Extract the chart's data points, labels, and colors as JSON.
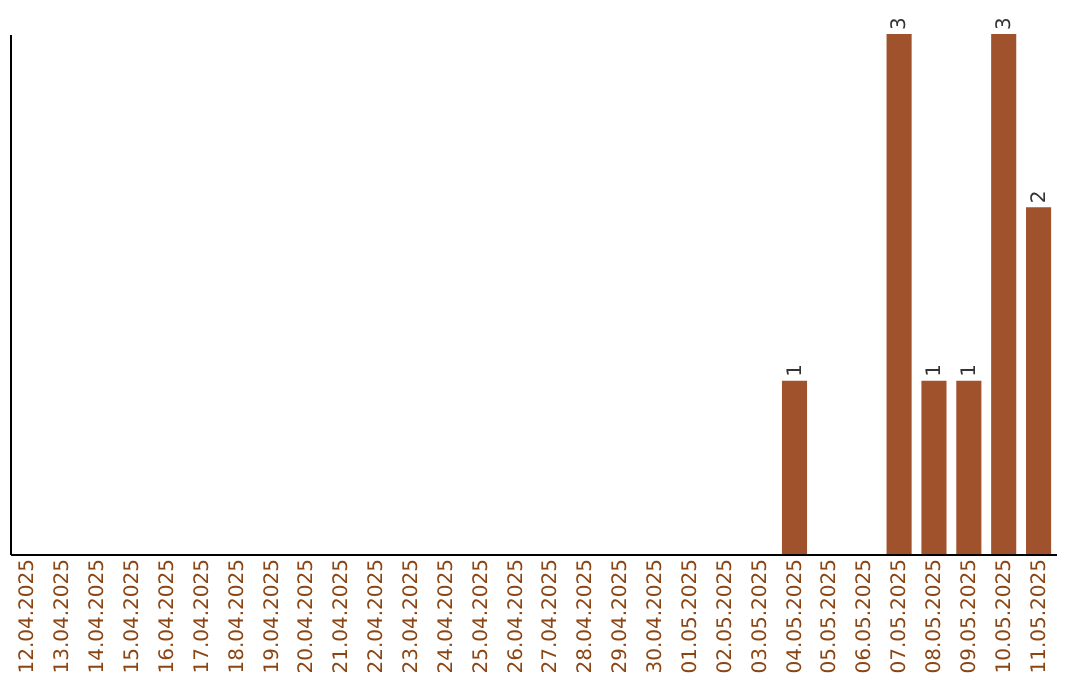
{
  "chart_data": {
    "type": "bar",
    "categories": [
      "12.04.2025",
      "13.04.2025",
      "14.04.2025",
      "15.04.2025",
      "16.04.2025",
      "17.04.2025",
      "18.04.2025",
      "19.04.2025",
      "20.04.2025",
      "21.04.2025",
      "22.04.2025",
      "23.04.2025",
      "24.04.2025",
      "25.04.2025",
      "26.04.2025",
      "27.04.2025",
      "28.04.2025",
      "29.04.2025",
      "30.04.2025",
      "01.05.2025",
      "02.05.2025",
      "03.05.2025",
      "04.05.2025",
      "05.05.2025",
      "06.05.2025",
      "07.05.2025",
      "08.05.2025",
      "09.05.2025",
      "10.05.2025",
      "11.05.2025"
    ],
    "values": [
      null,
      null,
      null,
      null,
      null,
      null,
      null,
      null,
      null,
      null,
      null,
      null,
      null,
      null,
      null,
      null,
      null,
      null,
      null,
      null,
      null,
      null,
      1,
      null,
      null,
      3,
      1,
      1,
      3,
      2
    ],
    "data_labels": true,
    "color": "#a0522d",
    "tick_labels": "x"
  }
}
